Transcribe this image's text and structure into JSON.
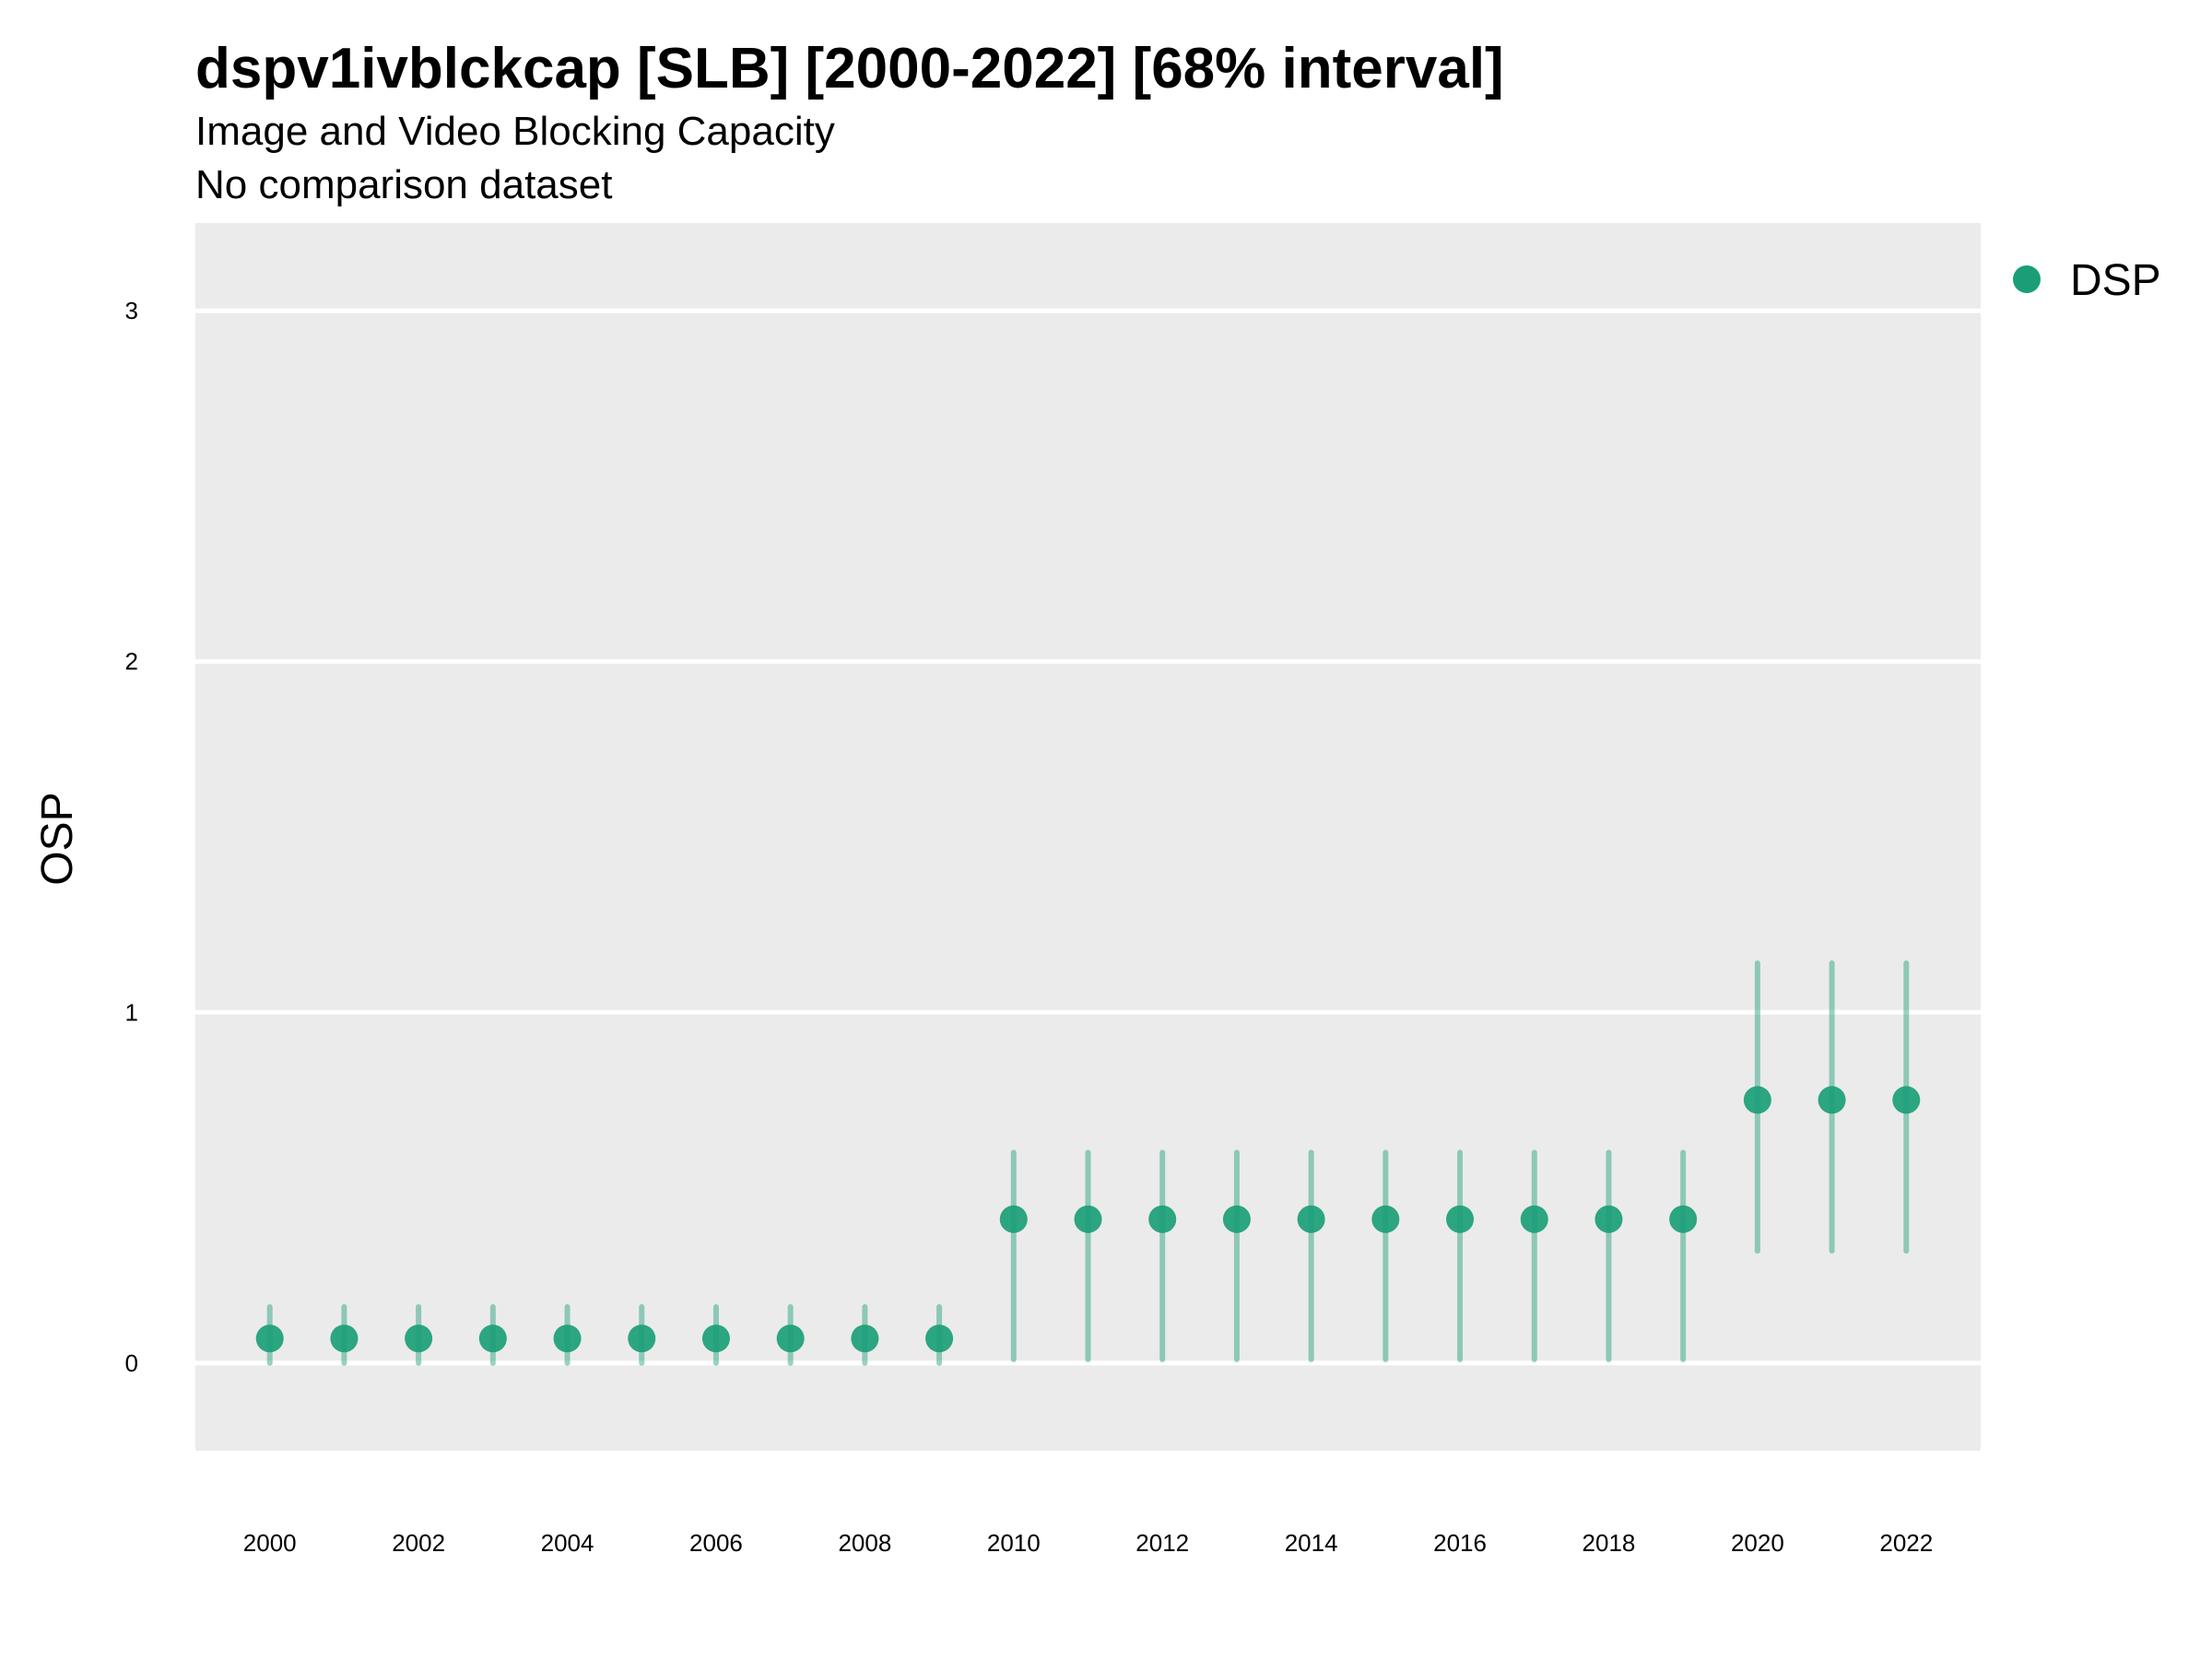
{
  "chart_data": {
    "type": "scatter",
    "title": "dspv1ivblckcap [SLB] [2000-2022] [68% interval]",
    "subtitle": "Image and Video Blocking Capacity",
    "caption": "No comparison dataset",
    "xlabel": "",
    "ylabel": "OSP",
    "xlim": [
      1999,
      2023
    ],
    "ylim": [
      -0.25,
      3.25
    ],
    "x_ticks": [
      2000,
      2002,
      2004,
      2006,
      2008,
      2010,
      2012,
      2014,
      2016,
      2018,
      2020,
      2022
    ],
    "x_tick_labels": [
      "2000",
      "2002",
      "2004",
      "2006",
      "2008",
      "2010",
      "2012",
      "2014",
      "2016",
      "2018",
      "2020",
      "2022"
    ],
    "y_ticks": [
      0,
      1,
      2,
      3
    ],
    "y_tick_labels": [
      "0",
      "1",
      "2",
      "3"
    ],
    "grid": true,
    "legend_position": "right",
    "series": [
      {
        "name": "DSP",
        "color": "#1b9e77",
        "x": [
          2000,
          2001,
          2002,
          2003,
          2004,
          2005,
          2006,
          2007,
          2008,
          2009,
          2010,
          2011,
          2012,
          2013,
          2014,
          2015,
          2016,
          2017,
          2018,
          2019,
          2020,
          2021,
          2022
        ],
        "y": [
          0.07,
          0.07,
          0.07,
          0.07,
          0.07,
          0.07,
          0.07,
          0.07,
          0.07,
          0.07,
          0.41,
          0.41,
          0.41,
          0.41,
          0.41,
          0.41,
          0.41,
          0.41,
          0.41,
          0.41,
          0.75,
          0.75,
          0.75
        ],
        "lower": [
          0.0,
          0.0,
          0.0,
          0.0,
          0.0,
          0.0,
          0.0,
          0.0,
          0.0,
          0.0,
          0.01,
          0.01,
          0.01,
          0.01,
          0.01,
          0.01,
          0.01,
          0.01,
          0.01,
          0.01,
          0.32,
          0.32,
          0.32
        ],
        "upper": [
          0.16,
          0.16,
          0.16,
          0.16,
          0.16,
          0.16,
          0.16,
          0.16,
          0.16,
          0.16,
          0.6,
          0.6,
          0.6,
          0.6,
          0.6,
          0.6,
          0.6,
          0.6,
          0.6,
          0.6,
          1.14,
          1.14,
          1.14
        ]
      }
    ]
  }
}
